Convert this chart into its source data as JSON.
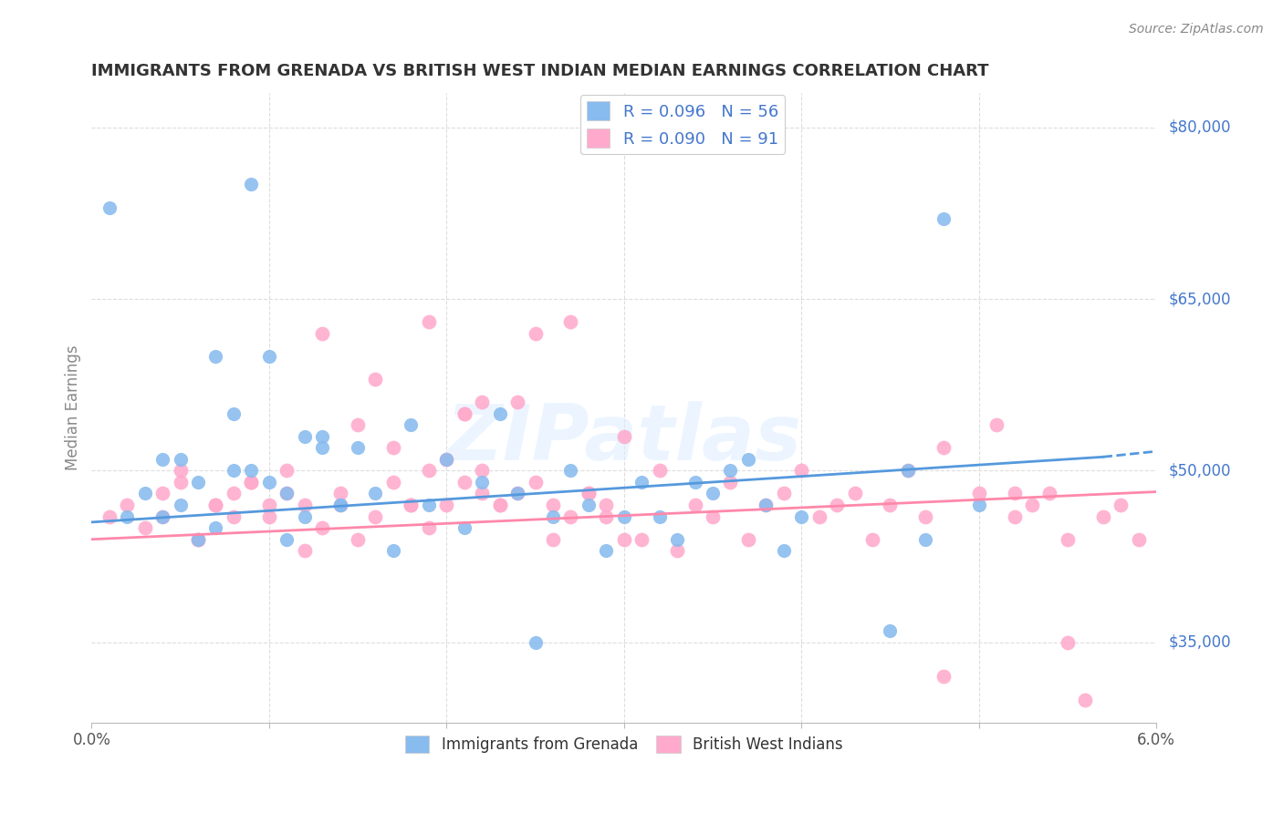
{
  "title": "IMMIGRANTS FROM GRENADA VS BRITISH WEST INDIAN MEDIAN EARNINGS CORRELATION CHART",
  "source": "Source: ZipAtlas.com",
  "ylabel": "Median Earnings",
  "watermark": "ZIPatlas",
  "legend_blue_R": "0.096",
  "legend_blue_N": "56",
  "legend_pink_R": "0.090",
  "legend_pink_N": "91",
  "xlim": [
    0.0,
    0.06
  ],
  "ylim": [
    28000,
    83000
  ],
  "ytick_vals": [
    35000,
    50000,
    65000,
    80000
  ],
  "ytick_labels": [
    "$35,000",
    "$50,000",
    "$65,000",
    "$80,000"
  ],
  "xtick_vals": [
    0.0,
    0.01,
    0.02,
    0.03,
    0.04,
    0.05,
    0.06
  ],
  "xtick_labels": [
    "0.0%",
    "",
    "",
    "",
    "",
    "",
    "6.0%"
  ],
  "blue_color": "#88BBEE",
  "pink_color": "#FFAACC",
  "blue_line_color": "#5599DD",
  "pink_line_color": "#FF88AA",
  "grid_color": "#DDDDDD",
  "blue_scatter_x": [
    0.001,
    0.009,
    0.01,
    0.002,
    0.003,
    0.004,
    0.005,
    0.006,
    0.007,
    0.008,
    0.011,
    0.012,
    0.013,
    0.014,
    0.015,
    0.016,
    0.017,
    0.018,
    0.004,
    0.005,
    0.019,
    0.006,
    0.007,
    0.008,
    0.009,
    0.01,
    0.011,
    0.012,
    0.013,
    0.014,
    0.02,
    0.021,
    0.022,
    0.023,
    0.024,
    0.025,
    0.026,
    0.027,
    0.028,
    0.029,
    0.03,
    0.031,
    0.032,
    0.033,
    0.034,
    0.035,
    0.036,
    0.037,
    0.038,
    0.039,
    0.04,
    0.045,
    0.046,
    0.048,
    0.05,
    0.047
  ],
  "blue_scatter_y": [
    73000,
    75000,
    60000,
    46000,
    48000,
    51000,
    47000,
    49000,
    45000,
    50000,
    44000,
    46000,
    53000,
    47000,
    52000,
    48000,
    43000,
    54000,
    46000,
    51000,
    47000,
    44000,
    60000,
    55000,
    50000,
    49000,
    48000,
    53000,
    52000,
    47000,
    51000,
    45000,
    49000,
    55000,
    48000,
    35000,
    46000,
    50000,
    47000,
    43000,
    46000,
    49000,
    46000,
    44000,
    49000,
    48000,
    50000,
    51000,
    47000,
    43000,
    46000,
    36000,
    50000,
    72000,
    47000,
    44000
  ],
  "pink_scatter_x": [
    0.001,
    0.002,
    0.003,
    0.004,
    0.005,
    0.006,
    0.007,
    0.008,
    0.009,
    0.01,
    0.011,
    0.012,
    0.013,
    0.014,
    0.015,
    0.016,
    0.017,
    0.018,
    0.019,
    0.02,
    0.021,
    0.022,
    0.023,
    0.024,
    0.025,
    0.026,
    0.027,
    0.028,
    0.029,
    0.03,
    0.031,
    0.032,
    0.033,
    0.034,
    0.035,
    0.036,
    0.037,
    0.038,
    0.039,
    0.04,
    0.004,
    0.005,
    0.006,
    0.007,
    0.008,
    0.009,
    0.01,
    0.011,
    0.012,
    0.013,
    0.014,
    0.015,
    0.016,
    0.017,
    0.018,
    0.019,
    0.02,
    0.021,
    0.022,
    0.023,
    0.024,
    0.025,
    0.026,
    0.027,
    0.028,
    0.029,
    0.03,
    0.021,
    0.019,
    0.022,
    0.041,
    0.042,
    0.043,
    0.044,
    0.045,
    0.046,
    0.047,
    0.048,
    0.05,
    0.051,
    0.052,
    0.053,
    0.054,
    0.055,
    0.056,
    0.057,
    0.058,
    0.059,
    0.048,
    0.055,
    0.052
  ],
  "pink_scatter_y": [
    46000,
    47000,
    45000,
    48000,
    50000,
    44000,
    47000,
    46000,
    49000,
    47000,
    48000,
    43000,
    62000,
    47000,
    44000,
    58000,
    52000,
    47000,
    45000,
    51000,
    55000,
    50000,
    47000,
    56000,
    49000,
    44000,
    46000,
    48000,
    47000,
    53000,
    44000,
    50000,
    43000,
    47000,
    46000,
    49000,
    44000,
    47000,
    48000,
    50000,
    46000,
    49000,
    44000,
    47000,
    48000,
    49000,
    46000,
    50000,
    47000,
    45000,
    48000,
    54000,
    46000,
    49000,
    47000,
    50000,
    47000,
    49000,
    48000,
    47000,
    48000,
    62000,
    47000,
    63000,
    48000,
    46000,
    44000,
    55000,
    63000,
    56000,
    46000,
    47000,
    48000,
    44000,
    47000,
    50000,
    46000,
    52000,
    48000,
    54000,
    46000,
    47000,
    48000,
    44000,
    30000,
    46000,
    47000,
    44000,
    32000,
    35000,
    48000
  ]
}
